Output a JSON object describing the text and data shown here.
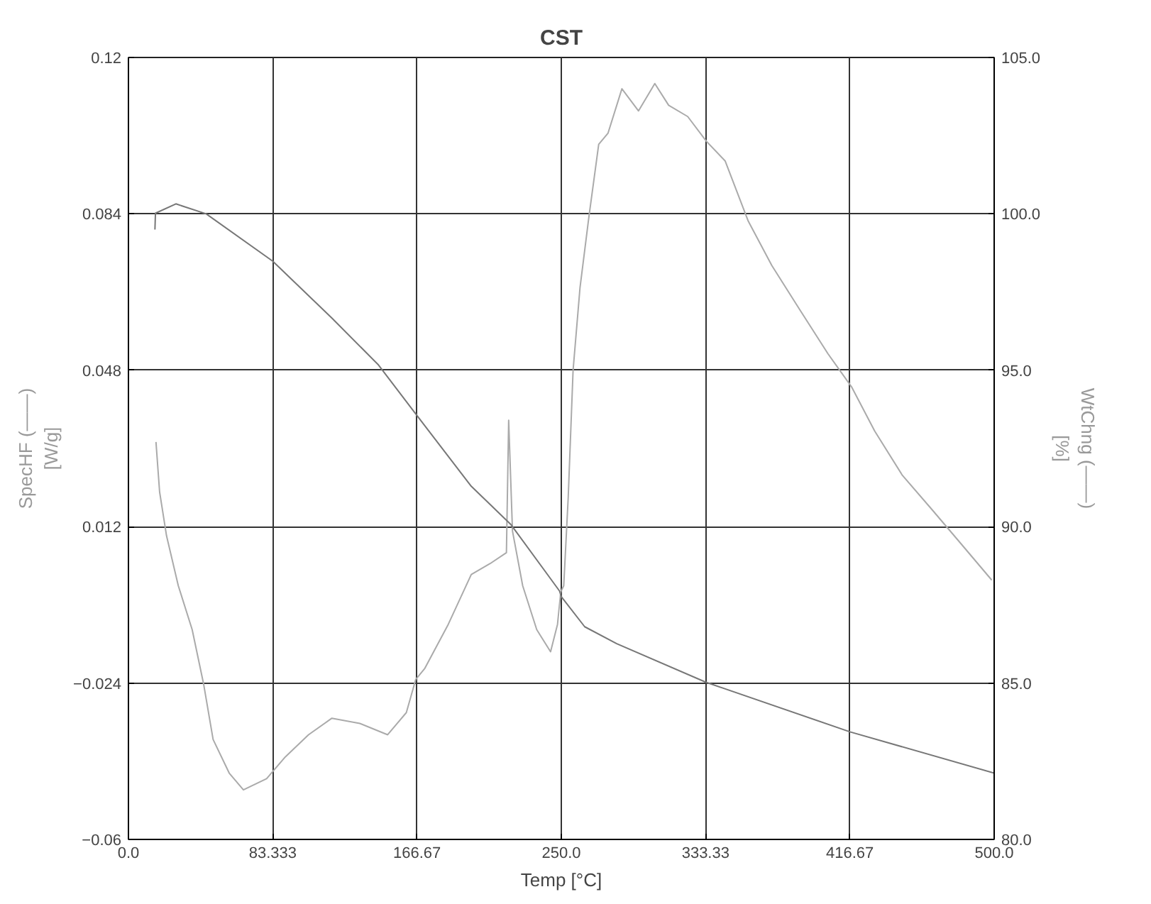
{
  "chart_data": {
    "type": "line",
    "title": "CST",
    "xlabel": "Temp [°C]",
    "ylabel": "SpecHF (——)\n[W/g]",
    "y2label": "WtChng (——)\n[%]",
    "xlim": [
      0,
      500
    ],
    "xticks": [
      {
        "value": 0,
        "label": "0.0"
      },
      {
        "value": 83.333,
        "label": "83.333"
      },
      {
        "value": 166.67,
        "label": "166.67"
      },
      {
        "value": 250,
        "label": "250.0"
      },
      {
        "value": 333.33,
        "label": "333.33"
      },
      {
        "value": 416.67,
        "label": "416.67"
      },
      {
        "value": 500,
        "label": "500.0"
      }
    ],
    "ylim": [
      -0.06,
      0.12
    ],
    "yticks": [
      -0.06,
      -0.024,
      0.012,
      0.048,
      0.084,
      0.12
    ],
    "y2lim": [
      80,
      105
    ],
    "y2ticks": [
      {
        "value": 80,
        "label": "80.0"
      },
      {
        "value": 85,
        "label": "85.0"
      },
      {
        "value": 90,
        "label": "90.0"
      },
      {
        "value": 95,
        "label": "95.0"
      },
      {
        "value": 100,
        "label": "100.0"
      },
      {
        "value": 105,
        "label": "105.0"
      }
    ],
    "grid": true,
    "series": [
      {
        "color": "#aaaaaa",
        "x": [
          15.9,
          18,
          22,
          28.8,
          36.8,
          43.5,
          48.9,
          58.3,
          66.4,
          79.8,
          90.6,
          104,
          117.5,
          133.6,
          149.7,
          160.5,
          165.9,
          171.2,
          184.7,
          198,
          208.9,
          218.3,
          219.6,
          221.8,
          227.7,
          235.8,
          243.8,
          247.8,
          249.7,
          251.4,
          254,
          256.8,
          260.8,
          266,
          271.6,
          277,
          285,
          294.6,
          304,
          312,
          323,
          333.8,
          344.6,
          358,
          371.6,
          387.8,
          404,
          417.6,
          431,
          447,
          463.5,
          479.7,
          498.6
        ],
        "values": [
          0.0315,
          0.02,
          0.0099,
          -0.0016,
          -0.0117,
          -0.0244,
          -0.037,
          -0.0448,
          -0.0486,
          -0.046,
          -0.041,
          -0.0359,
          -0.0321,
          -0.0333,
          -0.0359,
          -0.0308,
          -0.0232,
          -0.0206,
          -0.0105,
          0.001,
          0.0035,
          0.006,
          0.0365,
          0.011,
          -0.0016,
          -0.0117,
          -0.0168,
          -0.0105,
          -0.003,
          -0.0016,
          0.0188,
          0.048,
          0.067,
          0.0835,
          0.1,
          0.1026,
          0.1128,
          0.1077,
          0.114,
          0.109,
          0.1064,
          0.1007,
          0.0962,
          0.0823,
          0.0721,
          0.0619,
          0.0518,
          0.0442,
          0.034,
          0.0238,
          0.0162,
          0.0086,
          -0.0003
        ]
      },
      {
        "color": "#777777",
        "axis": "y2",
        "x": [
          15.3,
          15.6,
          27.4,
          44.9,
          83.3,
          117.5,
          144.4,
          166.1,
          198,
          221,
          249,
          250,
          263.5,
          282,
          333.3,
          416.7,
          500
        ],
        "values": [
          99.5,
          100.02,
          100.32,
          100.0,
          98.49,
          96.67,
          95.17,
          93.59,
          91.29,
          90.06,
          87.94,
          87.76,
          86.8,
          86.26,
          85.03,
          83.44,
          82.12
        ]
      }
    ]
  }
}
